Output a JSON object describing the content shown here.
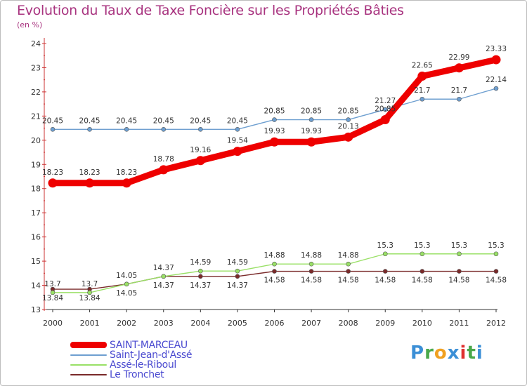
{
  "title": "Evolution du Taux de Taxe Foncière sur les Propriétés Bâties",
  "unit": "(en %)",
  "colors": {
    "title": "#a8337f",
    "axis": "#cc3333",
    "legend_text": "#4a4ad0"
  },
  "logo": {
    "letters": [
      "P",
      "r",
      "o",
      "x",
      "i",
      "t",
      "i"
    ],
    "colors": [
      "#3b8fd6",
      "#4aa84a",
      "#f0a020",
      "#3b8fd6",
      "#e03030",
      "#4aa84a",
      "#3b8fd6"
    ]
  },
  "chart_data": {
    "type": "line",
    "title": "Evolution du Taux de Taxe Foncière sur les Propriétés Bâties",
    "xlabel": "",
    "ylabel": "(en %)",
    "x": [
      "2000",
      "2001",
      "2002",
      "2003",
      "2004",
      "2005",
      "2006",
      "2007",
      "2008",
      "2009",
      "2010",
      "2011",
      "2012"
    ],
    "ylim": [
      13,
      24
    ],
    "yticks": [
      13,
      14,
      15,
      16,
      17,
      18,
      19,
      20,
      21,
      22,
      23,
      24
    ],
    "series": [
      {
        "name": "SAINT-MARCEAU",
        "color": "#ee0000",
        "values": [
          18.23,
          18.23,
          18.23,
          18.78,
          19.16,
          19.54,
          19.93,
          19.93,
          20.13,
          20.85,
          22.65,
          22.99,
          23.33
        ],
        "labels": [
          "18.23",
          "18.23",
          "18.23",
          "18.78",
          "19.16",
          "19.54",
          "19.93",
          "19.93",
          "20.13",
          "20.85",
          "22.65",
          "22.99",
          "23.33"
        ]
      },
      {
        "name": "Saint-Jean-d'Assé",
        "color": "#6e9fd0",
        "values": [
          20.45,
          20.45,
          20.45,
          20.45,
          20.45,
          20.45,
          20.85,
          20.85,
          20.85,
          21.27,
          21.7,
          21.7,
          22.14
        ],
        "labels": [
          "20.45",
          "20.45",
          "20.45",
          "20.45",
          "20.45",
          "20.45",
          "20.85",
          "20.85",
          "20.85",
          "21.27",
          "21.7",
          "21.7",
          "22.14"
        ]
      },
      {
        "name": "Assé-le-Riboul",
        "color": "#99e066",
        "values": [
          13.7,
          13.7,
          14.05,
          14.37,
          14.59,
          14.59,
          14.88,
          14.88,
          14.88,
          15.3,
          15.3,
          15.3,
          15.3
        ],
        "labels": [
          "13.7",
          "13.7",
          "14.05",
          "14.37",
          "14.59",
          "14.59",
          "14.88",
          "14.88",
          "14.88",
          "15.3",
          "15.3",
          "15.3",
          "15.3"
        ]
      },
      {
        "name": "Le Tronchet",
        "color": "#7a2a2a",
        "values": [
          13.84,
          13.84,
          14.05,
          14.37,
          14.37,
          14.37,
          14.58,
          14.58,
          14.58,
          14.58,
          14.58,
          14.58,
          14.58
        ],
        "labels": [
          "13.84",
          "13.84",
          "14.05",
          "14.37",
          "14.37",
          "14.37",
          "14.58",
          "14.58",
          "14.58",
          "14.58",
          "14.58",
          "14.58",
          "14.58"
        ]
      }
    ],
    "legend": [
      "SAINT-MARCEAU",
      "Saint-Jean-d'Assé",
      "Assé-le-Riboul",
      "Le Tronchet"
    ]
  }
}
